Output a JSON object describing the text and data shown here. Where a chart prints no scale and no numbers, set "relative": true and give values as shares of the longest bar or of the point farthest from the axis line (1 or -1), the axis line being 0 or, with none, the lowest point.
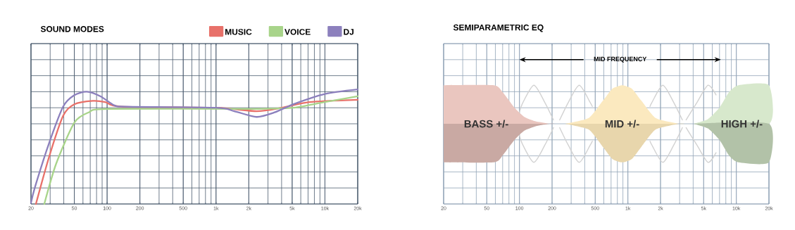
{
  "chart_data": [
    {
      "type": "line",
      "title": "SOUND MODES",
      "relative": true,
      "log": "x",
      "grid": true,
      "legend": "top right",
      "marker": "none",
      "line_style": "solid",
      "xlim": [
        20,
        20000
      ],
      "xticks": [
        20,
        50,
        100,
        200,
        500,
        {
          "value": 1000,
          "label": "1k"
        },
        {
          "value": 2000,
          "label": "2k"
        },
        {
          "value": 5000,
          "label": "5k"
        },
        {
          "value": 10000,
          "label": "10k"
        },
        {
          "value": 20000,
          "label": "20k"
        }
      ],
      "series": [
        {
          "name": "MUSIC",
          "color": "#e8716a",
          "x": [
            22.2,
            29.3,
            39.5,
            50,
            74,
            96,
            136,
            1000,
            2360,
            4000,
            7200,
            20000
          ],
          "values": [
            0,
            0.41,
            0.77,
            0.87,
            0.9,
            0.89,
            0.85,
            0.84,
            0.81,
            0.84,
            0.89,
            0.91
          ]
        },
        {
          "name": "VOICE",
          "color": "#a8d48a",
          "x": [
            26.5,
            34,
            50,
            68,
            101,
            2000,
            2400,
            5100,
            9900,
            20000
          ],
          "values": [
            0,
            0.35,
            0.71,
            0.8,
            0.83,
            0.83,
            0.83,
            0.84,
            0.89,
            0.94
          ]
        },
        {
          "name": "DJ",
          "color": "#8c80bd",
          "x": [
            20,
            21.8,
            29.3,
            39.5,
            50,
            65,
            87,
            117,
            150,
            1000,
            1470,
            2360,
            3460,
            5100,
            10000,
            20000
          ],
          "values": [
            0.01,
            0.15,
            0.53,
            0.85,
            0.95,
            0.98,
            0.94,
            0.86,
            0.85,
            0.84,
            0.81,
            0.76,
            0.8,
            0.87,
            0.96,
            1
          ]
        }
      ]
    },
    {
      "type": "area",
      "title": "SEMIPARAMETRIC EQ",
      "relative": true,
      "log": "x",
      "grid": true,
      "xlim": [
        20,
        20000
      ],
      "xticks": [
        20,
        50,
        100,
        200,
        500,
        {
          "value": 1000,
          "label": "1k"
        },
        {
          "value": 2000,
          "label": "2k"
        },
        {
          "value": 5000,
          "label": "5k"
        },
        {
          "value": 10000,
          "label": "10k"
        },
        {
          "value": 20000,
          "label": "20k"
        }
      ],
      "annotations": [
        "MID FREQUENCY"
      ],
      "series": [
        {
          "type": "line",
          "color": "#d2d2d2",
          "x": [
            100,
            108,
            136,
            171,
            206
          ],
          "values": [
            0.3,
            0.56,
            1,
            0.56,
            0.1
          ]
        },
        {
          "type": "line",
          "color": "#d2d2d2",
          "x": [
            100,
            108,
            136,
            171,
            206
          ],
          "values": [
            -0.3,
            -0.56,
            -1,
            -0.56,
            -0.1
          ]
        },
        {
          "type": "line",
          "color": "#d2d2d2",
          "x": [
            235,
            283,
            356,
            448,
            470
          ],
          "values": [
            0.1,
            0.56,
            1,
            0.56,
            0.45
          ]
        },
        {
          "type": "line",
          "color": "#d2d2d2",
          "x": [
            235,
            283,
            356,
            448,
            470
          ],
          "values": [
            -0.1,
            -0.56,
            -1,
            -0.56,
            -0.45
          ]
        },
        {
          "type": "line",
          "color": "#d2d2d2",
          "x": [
            1600,
            1670,
            2100,
            2640,
            3180
          ],
          "values": [
            0.45,
            0.56,
            1,
            0.56,
            0.1
          ]
        },
        {
          "type": "line",
          "color": "#d2d2d2",
          "x": [
            1600,
            1670,
            2100,
            2640,
            3180
          ],
          "values": [
            -0.45,
            -0.56,
            -1,
            -0.56,
            -0.1
          ]
        },
        {
          "type": "line",
          "color": "#d2d2d2",
          "x": [
            3440,
            4350,
            5480,
            6500
          ],
          "values": [
            0.1,
            0.56,
            1,
            0.75
          ]
        },
        {
          "type": "line",
          "color": "#d2d2d2",
          "x": [
            3440,
            4350,
            5480,
            6500
          ],
          "values": [
            -0.1,
            -0.56,
            -1,
            -0.75
          ]
        },
        {
          "name": "BASS +/-",
          "color": "#eac6bf",
          "x": [
            20,
            58,
            70,
            90,
            111,
            143,
            189
          ],
          "values": [
            1,
            1,
            0.82,
            0.42,
            0.18,
            0.06,
            0
          ]
        },
        {
          "color": "#c9a9a3",
          "x": [
            20,
            58,
            70,
            90,
            111,
            143,
            189
          ],
          "values": [
            -1,
            -1,
            -0.82,
            -0.42,
            -0.18,
            -0.06,
            0
          ]
        },
        {
          "name": "MID +/-",
          "color": "#fbe9bf",
          "x": [
            262,
            436,
            589,
            719,
            887,
            1090,
            1330,
            1800,
            2940
          ],
          "values": [
            0,
            0.15,
            0.6,
            0.91,
            1,
            0.91,
            0.6,
            0.15,
            0
          ]
        },
        {
          "color": "#e8d6ac",
          "x": [
            262,
            436,
            589,
            719,
            887,
            1090,
            1330,
            1800,
            2940
          ],
          "values": [
            0,
            -0.15,
            -0.6,
            -0.91,
            -1,
            -0.91,
            -0.6,
            -0.15,
            0
          ]
        },
        {
          "name": "HIGH +/-",
          "color": "#d7e8cc",
          "x": [
            4020,
            5460,
            7000,
            8560,
            10470,
            20000
          ],
          "values": [
            0,
            0.12,
            0.42,
            0.82,
            1,
            1
          ]
        },
        {
          "color": "#b2c2a8",
          "x": [
            4020,
            5460,
            7000,
            8560,
            10470,
            20000
          ],
          "values": [
            0,
            -0.12,
            -0.42,
            -0.82,
            -1,
            -1
          ]
        }
      ]
    }
  ]
}
